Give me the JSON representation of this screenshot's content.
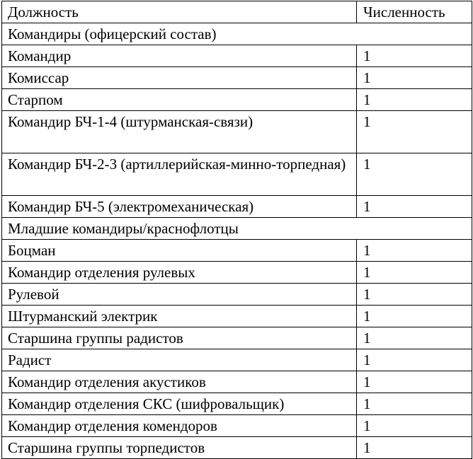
{
  "table": {
    "headers": [
      "Должность",
      "Численность"
    ],
    "rows": [
      {
        "type": "section",
        "label": "Командиры (офицерский состав)"
      },
      {
        "label": "Командир",
        "count": "1"
      },
      {
        "label": "Комиссар",
        "count": "1"
      },
      {
        "label": "Старпом",
        "count": "1"
      },
      {
        "label": "Командир БЧ-1-4 (штурманская-связи)",
        "count": "1",
        "two": true
      },
      {
        "label": "Командир БЧ-2-3 (артиллерийская-минно-торпедная)",
        "count": "1",
        "two": true
      },
      {
        "label": "Командир БЧ-5 (электромеханическая)",
        "count": "1"
      },
      {
        "type": "section",
        "label": "Младшие командиры/краснофлотцы"
      },
      {
        "label": "Боцман",
        "count": "1"
      },
      {
        "label": "Командир отделения рулевых",
        "count": "1"
      },
      {
        "label": "Рулевой",
        "count": "1"
      },
      {
        "label": "Штурманский электрик",
        "count": "1"
      },
      {
        "label": "Старшина группы радистов",
        "count": "1"
      },
      {
        "label": "Радист",
        "count": "1"
      },
      {
        "label": "Командир отделения акустиков",
        "count": "1"
      },
      {
        "label": "Командир отделения СКС (шифровальщик)",
        "count": "1"
      },
      {
        "label": "Командир отделения комендоров",
        "count": "1"
      },
      {
        "label": "Старшина группы торпедистов",
        "count": "1"
      }
    ]
  }
}
